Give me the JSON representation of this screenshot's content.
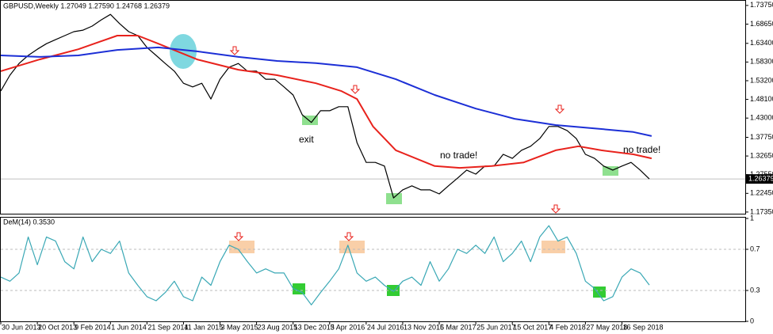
{
  "chart_data": [
    {
      "type": "line",
      "title": "GBPUSD,Weekly  1.27049 1.27590 1.24768 1.26379",
      "xlim": [
        0,
        326
      ],
      "ylim": [
        1.169,
        1.748
      ],
      "yticks": [
        {
          "value": 1.7375,
          "label": "1.73750"
        },
        {
          "value": 1.6865,
          "label": "1.68650"
        },
        {
          "value": 1.634,
          "label": "1.63400"
        },
        {
          "value": 1.583,
          "label": "1.58300"
        },
        {
          "value": 1.532,
          "label": "1.53200"
        },
        {
          "value": 1.481,
          "label": "1.48100"
        },
        {
          "value": 1.43,
          "label": "1.43000"
        },
        {
          "value": 1.3775,
          "label": "1.37750"
        },
        {
          "value": 1.3265,
          "label": "1.32650"
        },
        {
          "value": 1.2755,
          "label": "1.27550"
        },
        {
          "value": 1.2245,
          "label": "1.22450"
        },
        {
          "value": 1.1735,
          "label": "1.17350"
        }
      ],
      "price_line": 1.26379,
      "annotations": [
        "exit",
        "no trade!",
        "no trade!"
      ],
      "series": [
        {
          "color": "#000000",
          "x": [
            0,
            4,
            8,
            12,
            16,
            20,
            24,
            28,
            32,
            36,
            40,
            44,
            48,
            52,
            56,
            60,
            64,
            68,
            72,
            76,
            80,
            84,
            88,
            92,
            96,
            100,
            104,
            108,
            112,
            116,
            120,
            124,
            128,
            132,
            136,
            140,
            144,
            148,
            152,
            156,
            160,
            164,
            168,
            172,
            176,
            180,
            184,
            188,
            192,
            196,
            200,
            204,
            208,
            212,
            216,
            220,
            224,
            228,
            232,
            236,
            240,
            244,
            248,
            252,
            256,
            260,
            264,
            268,
            272,
            276,
            280,
            284
          ],
          "values": [
            1.504,
            1.547,
            1.579,
            1.601,
            1.618,
            1.633,
            1.644,
            1.655,
            1.666,
            1.67,
            1.681,
            1.698,
            1.713,
            1.688,
            1.666,
            1.655,
            1.623,
            1.601,
            1.579,
            1.558,
            1.525,
            1.515,
            1.525,
            1.482,
            1.536,
            1.569,
            1.579,
            1.558,
            1.558,
            1.536,
            1.536,
            1.515,
            1.493,
            1.439,
            1.418,
            1.45,
            1.45,
            1.461,
            1.461,
            1.363,
            1.309,
            1.309,
            1.299,
            1.212,
            1.234,
            1.245,
            1.234,
            1.234,
            1.223,
            1.245,
            1.266,
            1.288,
            1.277,
            1.299,
            1.299,
            1.331,
            1.32,
            1.342,
            1.353,
            1.374,
            1.407,
            1.407,
            1.396,
            1.374,
            1.331,
            1.32,
            1.299,
            1.288,
            1.299,
            1.309,
            1.288,
            1.26379
          ]
        },
        {
          "color": "#e8221c",
          "x": [
            0,
            17,
            34,
            51,
            60,
            69,
            86,
            104,
            121,
            138,
            149,
            156,
            163,
            173,
            190,
            201,
            215,
            229,
            243,
            253,
            263,
            277,
            285
          ],
          "values": [
            1.558,
            1.59,
            1.618,
            1.655,
            1.655,
            1.633,
            1.59,
            1.562,
            1.547,
            1.525,
            1.504,
            1.482,
            1.407,
            1.342,
            1.299,
            1.294,
            1.299,
            1.309,
            1.342,
            1.353,
            1.342,
            1.331,
            1.32
          ]
        },
        {
          "color": "#1c2fd6",
          "x": [
            0,
            17,
            34,
            51,
            69,
            86,
            104,
            121,
            138,
            156,
            173,
            190,
            208,
            225,
            243,
            260,
            277,
            285
          ],
          "values": [
            1.601,
            1.597,
            1.601,
            1.616,
            1.623,
            1.612,
            1.597,
            1.586,
            1.58,
            1.569,
            1.536,
            1.493,
            1.456,
            1.428,
            1.411,
            1.402,
            1.392,
            1.381
          ]
        }
      ]
    },
    {
      "type": "line",
      "title": "DeM(14) 0.3530",
      "xlim": [
        0,
        326
      ],
      "ylim": [
        0,
        1
      ],
      "yticks": [
        1,
        0.7,
        0.3,
        0
      ],
      "levels": [
        0.7,
        0.3
      ],
      "xticks": [
        {
          "value": 0,
          "label": "30 Jun 2013"
        },
        {
          "value": 16,
          "label": "20 Oct 2013"
        },
        {
          "value": 32,
          "label": "9 Feb 2014"
        },
        {
          "value": 48,
          "label": "1 Jun 2014"
        },
        {
          "value": 64,
          "label": "21 Sep 2014"
        },
        {
          "value": 80,
          "label": "11 Jan 2015"
        },
        {
          "value": 96,
          "label": "3 May 2015"
        },
        {
          "value": 112,
          "label": "23 Aug 2015"
        },
        {
          "value": 128,
          "label": "13 Dec 2015"
        },
        {
          "value": 144,
          "label": "3 Apr 2016"
        },
        {
          "value": 160,
          "label": "24 Jul 2016"
        },
        {
          "value": 176,
          "label": "13 Nov 2016"
        },
        {
          "value": 192,
          "label": "5 Mar 2017"
        },
        {
          "value": 208,
          "label": "25 Jun 2017"
        },
        {
          "value": 224,
          "label": "15 Oct 2017"
        },
        {
          "value": 240,
          "label": "4 Feb 2018"
        },
        {
          "value": 256,
          "label": "27 May 2018"
        },
        {
          "value": 272,
          "label": "16 Sep 2018"
        }
      ],
      "series": [
        {
          "color": "#3aa8b5",
          "x": [
            0,
            4,
            8,
            12,
            16,
            20,
            24,
            28,
            32,
            36,
            40,
            44,
            48,
            52,
            56,
            60,
            64,
            68,
            72,
            76,
            80,
            84,
            88,
            92,
            96,
            100,
            104,
            108,
            112,
            116,
            120,
            124,
            128,
            132,
            136,
            140,
            144,
            148,
            152,
            156,
            160,
            164,
            168,
            172,
            176,
            180,
            184,
            188,
            192,
            196,
            200,
            204,
            208,
            212,
            216,
            220,
            224,
            228,
            232,
            236,
            240,
            244,
            248,
            252,
            256,
            260,
            264,
            268,
            272,
            276,
            280,
            284
          ],
          "values": [
            0.43,
            0.39,
            0.47,
            0.82,
            0.55,
            0.82,
            0.78,
            0.58,
            0.51,
            0.82,
            0.58,
            0.7,
            0.66,
            0.78,
            0.47,
            0.35,
            0.24,
            0.2,
            0.28,
            0.39,
            0.24,
            0.2,
            0.43,
            0.35,
            0.58,
            0.74,
            0.7,
            0.58,
            0.47,
            0.51,
            0.47,
            0.47,
            0.32,
            0.28,
            0.16,
            0.28,
            0.39,
            0.51,
            0.74,
            0.47,
            0.39,
            0.43,
            0.35,
            0.29,
            0.39,
            0.43,
            0.35,
            0.58,
            0.39,
            0.51,
            0.7,
            0.66,
            0.74,
            0.66,
            0.82,
            0.58,
            0.66,
            0.78,
            0.58,
            0.82,
            0.93,
            0.78,
            0.82,
            0.66,
            0.39,
            0.32,
            0.2,
            0.24,
            0.43,
            0.51,
            0.47,
            0.353
          ]
        }
      ]
    }
  ]
}
